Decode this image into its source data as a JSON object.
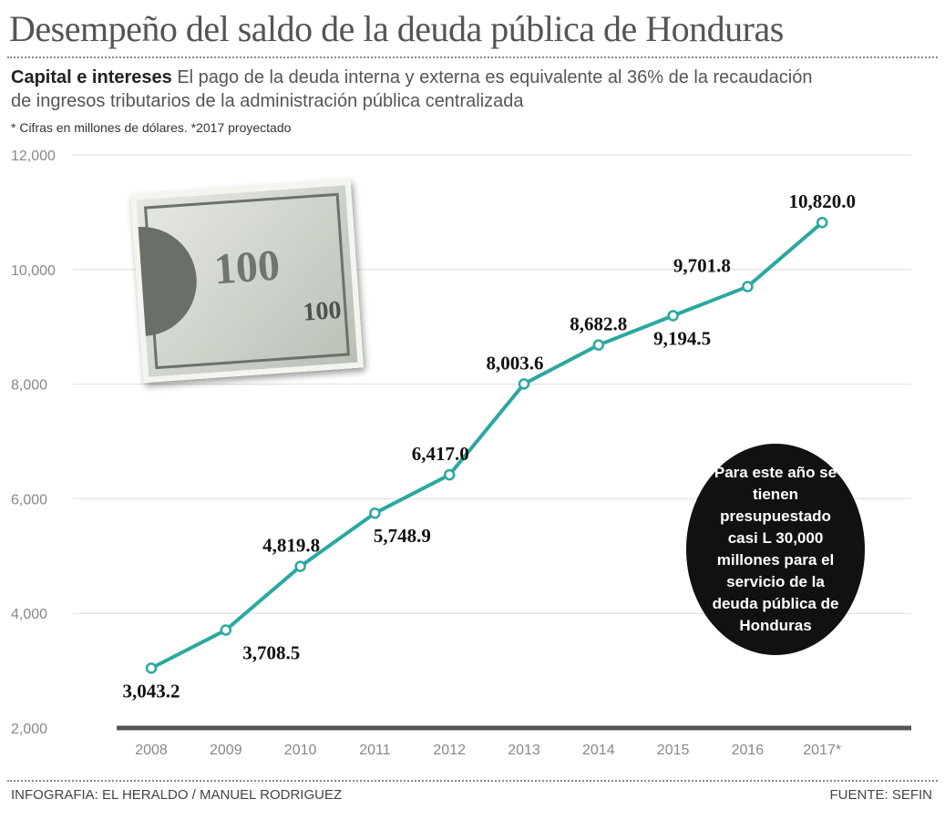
{
  "header": {
    "title": "Desempeño del saldo de la deuda pública de Honduras",
    "subtitle_bold": "Capital e intereses",
    "subtitle_text": "El pago de la deuda interna y externa es equivalente al 36% de la recaudación de ingresos tributarios de la administración pública centralizada",
    "note": "* Cifras en millones de dólares.  *2017 proyectado"
  },
  "callout": "Para este año se tienen presupuestado casi L 30,000 millones para el servicio de la deuda pública de Honduras",
  "footer": {
    "credit": "INFOGRAFIA: EL HERALDO / MANUEL RODRIGUEZ",
    "source": "FUENTE: SEFIN"
  },
  "colors": {
    "line": "#2aa8a0",
    "axis": "#555555",
    "grid": "#e6e6e6"
  },
  "image": {
    "bill_label": "100"
  },
  "chart_data": {
    "type": "line",
    "title": "Desempeño del saldo de la deuda pública de Honduras",
    "categories": [
      "2008",
      "2009",
      "2010",
      "2011",
      "2012",
      "2013",
      "2014",
      "2015",
      "2016",
      "2017*"
    ],
    "values": [
      3043.2,
      3708.5,
      4819.8,
      5748.9,
      6417.0,
      8003.6,
      8682.8,
      9194.5,
      9701.8,
      10820.0
    ],
    "data_labels": [
      "3,043.2",
      "3,708.5",
      "4,819.8",
      "5,748.9",
      "6,417.0",
      "8,003.6",
      "8,682.8",
      "9,194.5",
      "9,701.8",
      "10,820.0"
    ],
    "yticks": [
      "2,000",
      "4,000",
      "6,000",
      "8,000",
      "10,000",
      "12,000"
    ],
    "ylim": [
      2000,
      12000
    ],
    "grid": true,
    "xlabel": "",
    "ylabel": ""
  }
}
